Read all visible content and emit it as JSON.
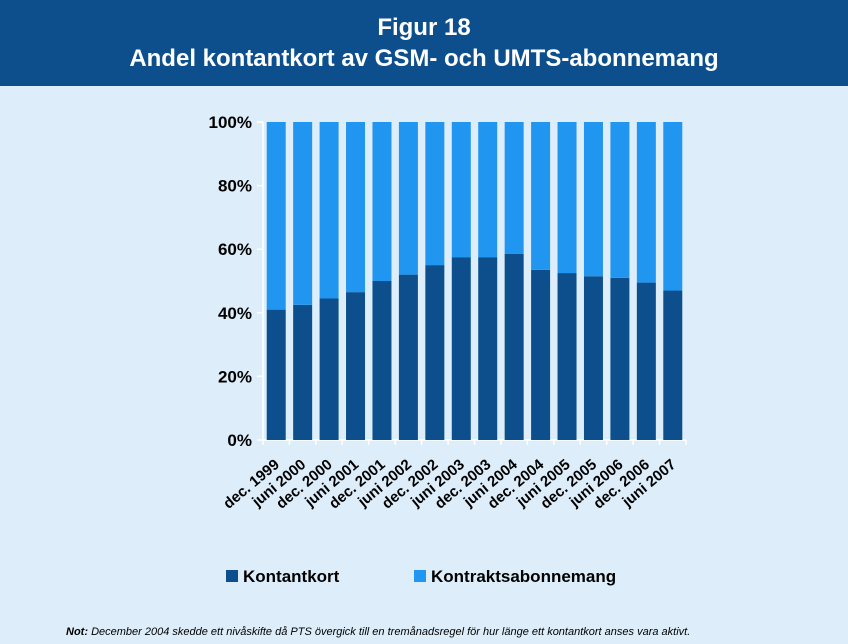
{
  "header": {
    "figure_label": "Figur 18",
    "title": "Andel kontantkort av GSM- och UMTS-abonnemang"
  },
  "note": {
    "label": "Not:",
    "text": "December 2004 skedde ett nivåskifte då PTS övergick till en tremånadsregel för hur länge ett kontantkort anses vara aktivt."
  },
  "colors": {
    "header_bg": "#0c4f8c",
    "background": "#ddeefa",
    "kontantkort": "#0c4f8c",
    "kontrakt": "#2196f0"
  },
  "chart_data": {
    "type": "bar",
    "stacked": true,
    "percent": true,
    "categories": [
      "dec. 1999",
      "juni 2000",
      "dec. 2000",
      "juni 2001",
      "dec. 2001",
      "juni 2002",
      "dec. 2002",
      "juni 2003",
      "dec. 2003",
      "juni 2004",
      "dec. 2004",
      "juni 2005",
      "dec. 2005",
      "juni 2006",
      "dec. 2006",
      "juni 2007"
    ],
    "series": [
      {
        "name": "Kontantkort",
        "values": [
          41,
          42.5,
          44.5,
          46.5,
          50,
          52,
          55,
          57.5,
          57.5,
          58.5,
          53.5,
          52.5,
          51.5,
          51,
          49.5,
          47
        ]
      },
      {
        "name": "Kontraktsabonnemang",
        "values": [
          59,
          57.5,
          55.5,
          53.5,
          50,
          48,
          45,
          42.5,
          42.5,
          41.5,
          46.5,
          47.5,
          48.5,
          49,
          50.5,
          53
        ]
      }
    ],
    "ylim": [
      0,
      100
    ],
    "yticks": [
      "0%",
      "20%",
      "40%",
      "60%",
      "80%",
      "100%"
    ],
    "legend": "bottom"
  }
}
